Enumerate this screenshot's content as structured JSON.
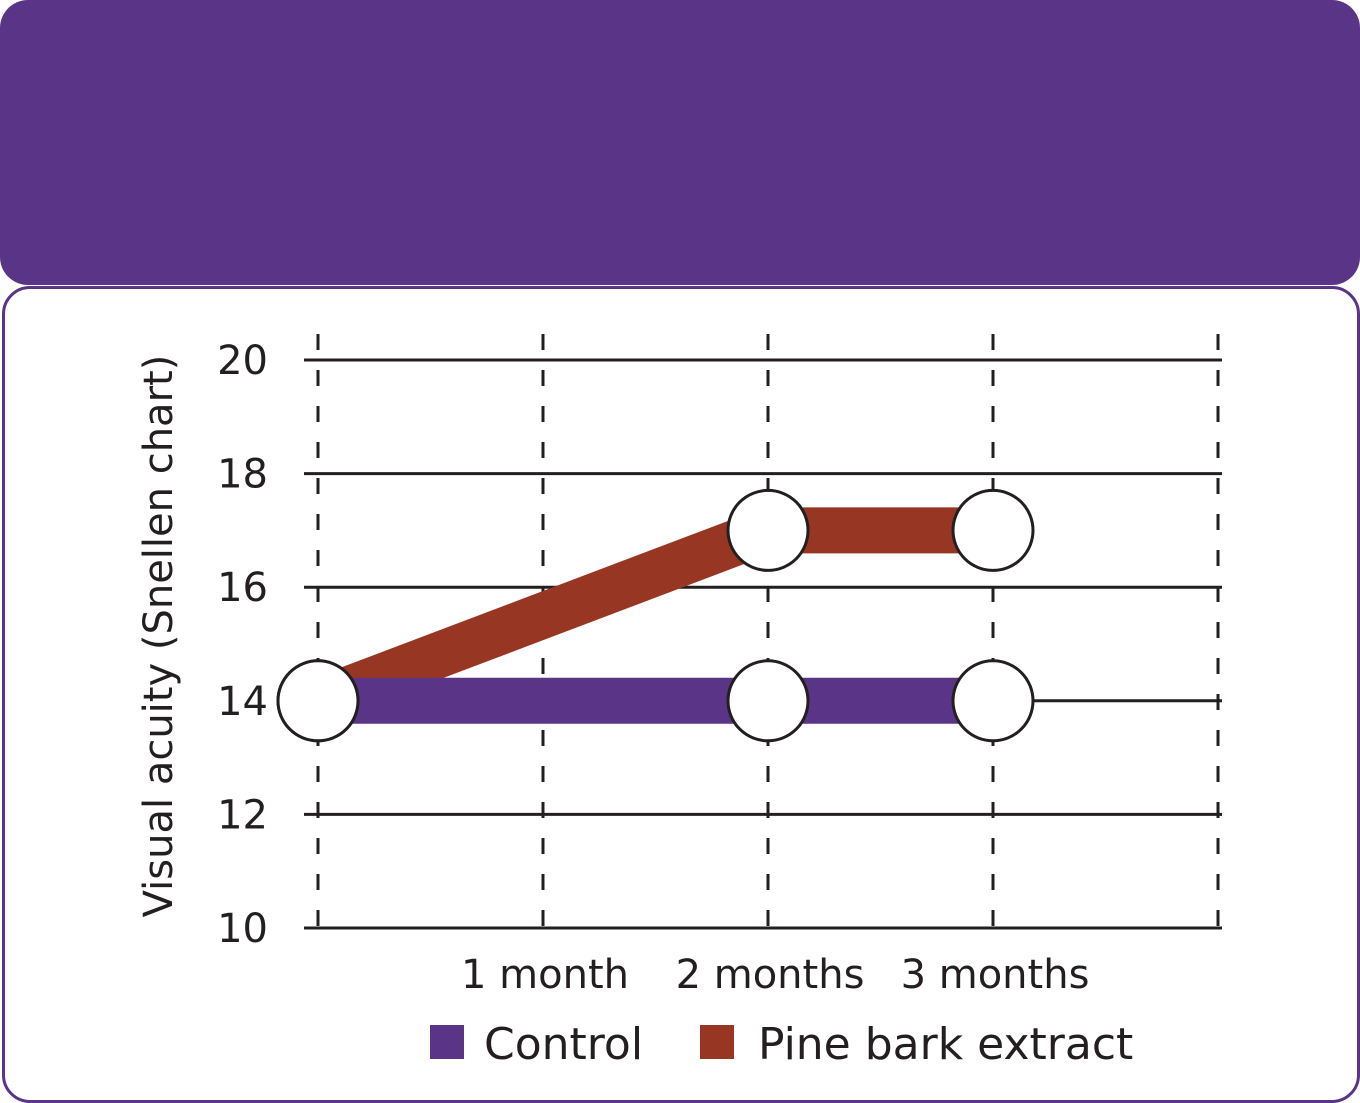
{
  "colors": {
    "brand": "#5a3487",
    "control": "#5a3487",
    "pine_bark_extract": "#973622",
    "grid": "#231f20"
  },
  "chart_data": {
    "type": "line",
    "title": "",
    "xlabel": "",
    "ylabel": "Visual acuity (Snellen chart)",
    "x_categories": [
      "",
      "1 month",
      "2 months",
      "3 months",
      ""
    ],
    "ylim": [
      10,
      20
    ],
    "y_ticks": [
      "20",
      "18",
      "16",
      "14",
      "12",
      "10"
    ],
    "grid": true,
    "legend_position": "bottom",
    "series": [
      {
        "name": "Control",
        "color": "#5a3487",
        "points": [
          {
            "x": 0,
            "y": 14
          },
          {
            "x": 2,
            "y": 14
          },
          {
            "x": 3,
            "y": 14
          }
        ]
      },
      {
        "name": "Pine bark extract",
        "color": "#973622",
        "points": [
          {
            "x": 0,
            "y": 14
          },
          {
            "x": 2,
            "y": 17
          },
          {
            "x": 3,
            "y": 17
          }
        ]
      }
    ],
    "legend": [
      "Control",
      "Pine bark extract"
    ]
  }
}
